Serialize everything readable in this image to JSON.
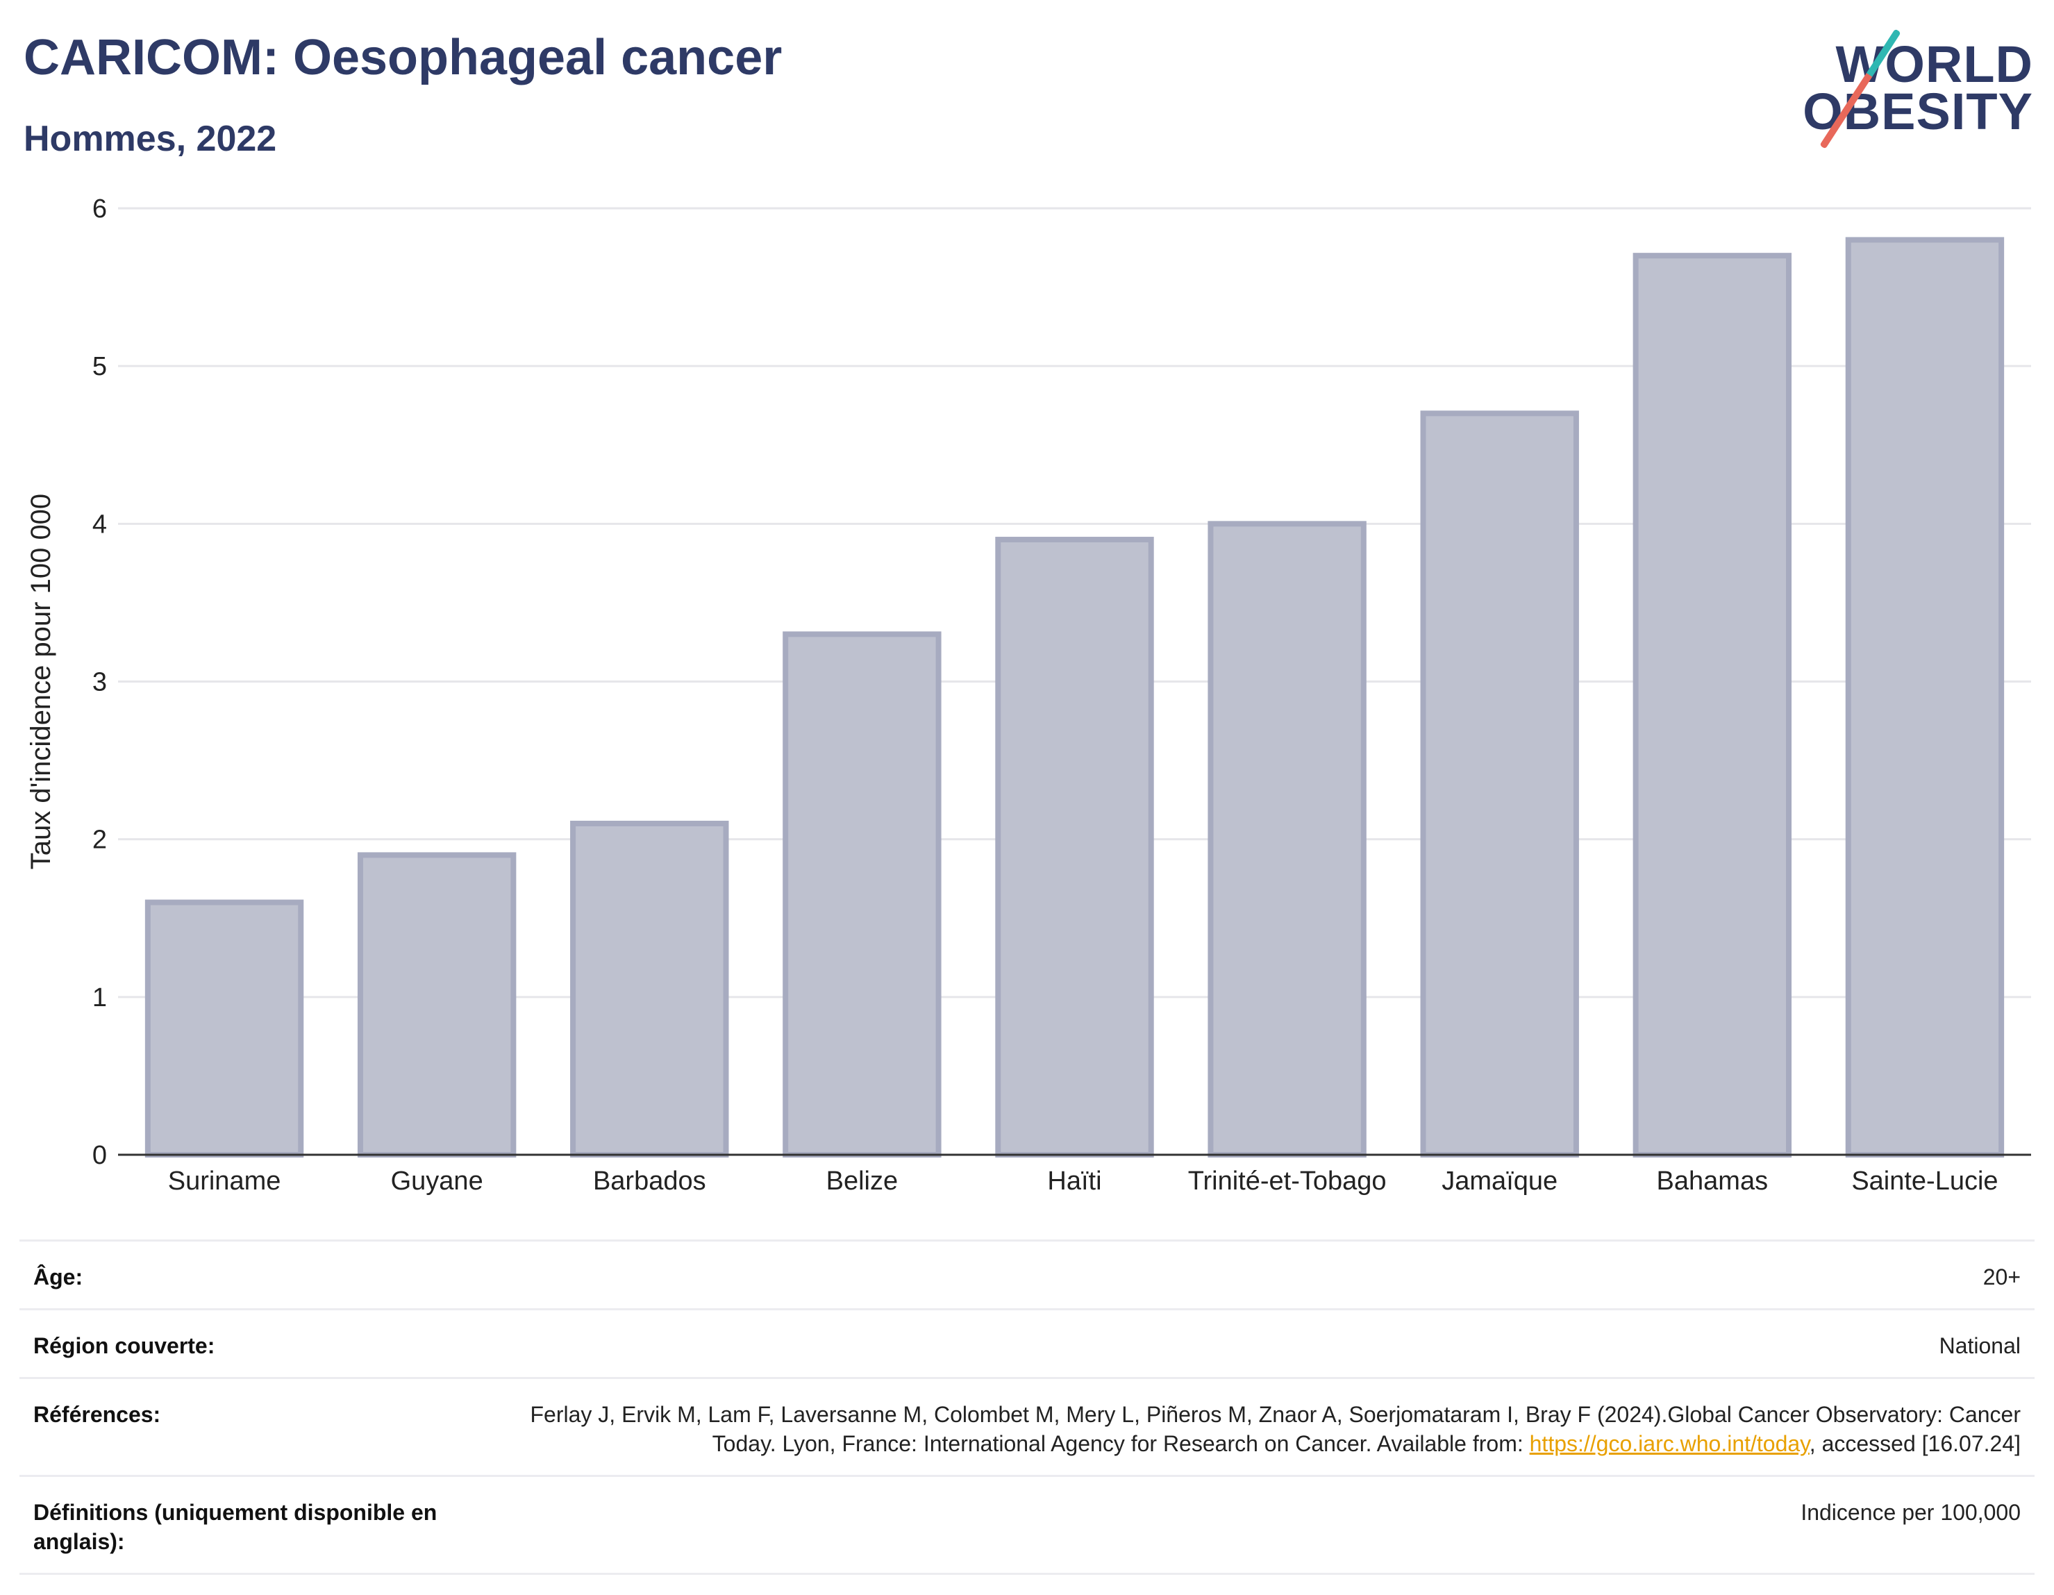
{
  "header": {
    "title": "CARICOM: Oesophageal cancer",
    "subtitle": "Hommes, 2022",
    "logo_line1": "WORLD",
    "logo_line2": "OBESITY"
  },
  "colors": {
    "bar_fill": "#bec1cf",
    "bar_stroke": "#a7abc0",
    "title": "#2e3a66",
    "link": "#e8a000"
  },
  "chart_data": {
    "type": "bar",
    "title": "CARICOM: Oesophageal cancer",
    "subtitle": "Hommes, 2022",
    "xlabel": "",
    "ylabel": "Taux d'incidence pour 100 000",
    "categories": [
      "Suriname",
      "Guyane",
      "Barbados",
      "Belize",
      "Haïti",
      "Trinité-et-Tobago",
      "Jamaïque",
      "Bahamas",
      "Sainte-Lucie"
    ],
    "values": [
      1.6,
      1.9,
      2.1,
      3.3,
      3.9,
      4.0,
      4.7,
      5.7,
      5.8
    ],
    "ylim": [
      0,
      6
    ],
    "yticks": [
      0,
      1,
      2,
      3,
      4,
      5,
      6
    ],
    "grid": true,
    "legend": "none"
  },
  "footer": {
    "age_label": "Âge:",
    "age_value": "20+",
    "region_label": "Région couverte:",
    "region_value": "National",
    "ref_label": "Références:",
    "ref_text_before": "Ferlay J, Ervik M, Lam F, Laversanne M, Colombet M, Mery L, Piñeros M, Znaor A, Soerjomataram I, Bray F (2024).Global Cancer Observatory: Cancer Today. Lyon, France: International Agency for Research on Cancer. Available from: ",
    "ref_link": "https://gco.iarc.who.int/today",
    "ref_text_after": ", accessed [16.07.24]",
    "def_label": "Définitions (uniquement disponible en anglais):",
    "def_value": "Indicence per 100,000"
  }
}
